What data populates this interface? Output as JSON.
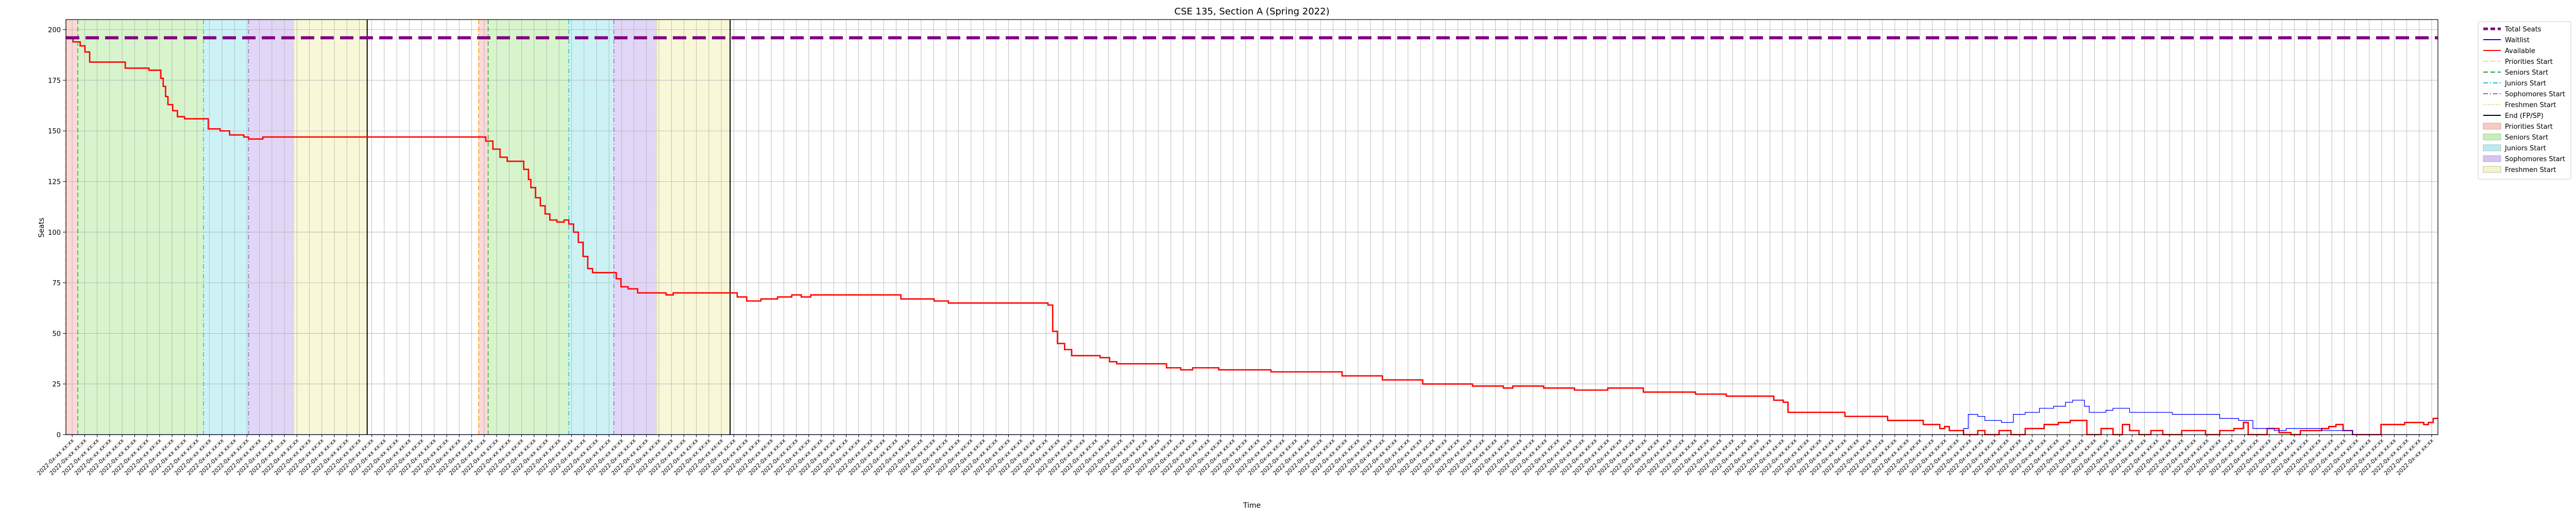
{
  "chart_data": {
    "type": "line",
    "title": "CSE 135, Section A (Spring 2022)",
    "xlabel": "Time",
    "ylabel": "Seats",
    "ylim": [
      0,
      205
    ],
    "y_ticks": [
      0,
      25,
      50,
      75,
      100,
      125,
      150,
      175,
      200
    ],
    "x_range": [
      0,
      100
    ],
    "grid": true,
    "legend_placement": "outside-right",
    "x_tick_label_pattern": "2022-0x-xx xx:xx",
    "total_seats": 196,
    "legend": [
      {
        "label": "Total Seats",
        "kind": "line",
        "color": "#800080",
        "dash": "dashed",
        "thick": true
      },
      {
        "label": "Waitlist",
        "kind": "line",
        "color": "#0000ff",
        "dash": "solid"
      },
      {
        "label": "Available",
        "kind": "line",
        "color": "#ff0000",
        "dash": "solid"
      },
      {
        "label": "Priorities Start",
        "kind": "line",
        "color": "#ffd27f",
        "dash": "dashed"
      },
      {
        "label": "Seniors Start",
        "kind": "line",
        "color": "#2ca02c",
        "dash": "dashed"
      },
      {
        "label": "Juniors Start",
        "kind": "line",
        "color": "#17becf",
        "dash": "dashdot"
      },
      {
        "label": "Sophomores Start",
        "kind": "line",
        "color": "#9467bd",
        "dash": "dashdot"
      },
      {
        "label": "Freshmen Start",
        "kind": "line",
        "color": "#d4d46a",
        "dash": "dotted"
      },
      {
        "label": "End (FP/SP)",
        "kind": "line",
        "color": "#000000",
        "dash": "solid"
      },
      {
        "label": "Priorities Start",
        "kind": "patch",
        "color": "#f8c9c4"
      },
      {
        "label": "Seniors Start",
        "kind": "patch",
        "color": "#c6f0b6"
      },
      {
        "label": "Juniors Start",
        "kind": "patch",
        "color": "#b6ecf2"
      },
      {
        "label": "Sophomores Start",
        "kind": "patch",
        "color": "#d5c4f2"
      },
      {
        "label": "Freshmen Start",
        "kind": "patch",
        "color": "#f5f5c8"
      }
    ],
    "phases": [
      {
        "name": "Priorities Start",
        "start": 0.0,
        "end": 0.5,
        "color": "#f8c9c4",
        "line_color": "#ff8c00",
        "line_dash": "dashed"
      },
      {
        "name": "Seniors Start",
        "start": 0.5,
        "end": 5.8,
        "color": "#c6f0b6",
        "line_color": "#2ca02c",
        "line_dash": "dashed"
      },
      {
        "name": "Juniors Start",
        "start": 5.8,
        "end": 7.7,
        "color": "#b6ecf2",
        "line_color": "#17becf",
        "line_dash": "dashdot"
      },
      {
        "name": "Sophomores Start",
        "start": 7.7,
        "end": 9.6,
        "color": "#d5c4f2",
        "line_color": "#9467bd",
        "line_dash": "dashdot"
      },
      {
        "name": "Freshmen Start",
        "start": 9.6,
        "end": 12.7,
        "color": "#f5f5c8",
        "line_color": "#c8c850",
        "line_dash": "dotted"
      },
      {
        "name": "Priorities Start",
        "start": 17.4,
        "end": 17.8,
        "color": "#f8c9c4",
        "line_color": "#ff8c00",
        "line_dash": "dashed"
      },
      {
        "name": "Seniors Start",
        "start": 17.8,
        "end": 21.2,
        "color": "#c6f0b6",
        "line_color": "#2ca02c",
        "line_dash": "dashed"
      },
      {
        "name": "Juniors Start",
        "start": 21.2,
        "end": 23.1,
        "color": "#b6ecf2",
        "line_color": "#17becf",
        "line_dash": "dashdot"
      },
      {
        "name": "Sophomores Start",
        "start": 23.1,
        "end": 24.9,
        "color": "#d5c4f2",
        "line_color": "#9467bd",
        "line_dash": "dashdot"
      },
      {
        "name": "Freshmen Start",
        "start": 24.9,
        "end": 28.0,
        "color": "#f5f5c8",
        "line_color": "#c8c850",
        "line_dash": "dotted"
      }
    ],
    "end_lines": [
      12.7,
      28.0
    ],
    "series": [
      {
        "name": "Available",
        "color": "#ff0000",
        "points": [
          [
            0.0,
            196
          ],
          [
            0.3,
            194
          ],
          [
            0.6,
            192
          ],
          [
            0.8,
            189
          ],
          [
            1.0,
            184
          ],
          [
            2.4,
            184
          ],
          [
            2.5,
            181
          ],
          [
            3.4,
            181
          ],
          [
            3.5,
            180
          ],
          [
            3.9,
            180
          ],
          [
            4.0,
            176
          ],
          [
            4.1,
            172
          ],
          [
            4.2,
            167
          ],
          [
            4.3,
            163
          ],
          [
            4.5,
            160
          ],
          [
            4.7,
            157
          ],
          [
            5.0,
            156
          ],
          [
            5.8,
            156
          ],
          [
            6.0,
            151
          ],
          [
            6.5,
            150
          ],
          [
            6.9,
            148
          ],
          [
            7.5,
            147
          ],
          [
            7.7,
            146
          ],
          [
            8.3,
            147
          ],
          [
            9.6,
            147
          ],
          [
            17.4,
            147
          ],
          [
            17.7,
            145
          ],
          [
            18.0,
            141
          ],
          [
            18.3,
            137
          ],
          [
            18.6,
            135
          ],
          [
            19.1,
            135
          ],
          [
            19.3,
            131
          ],
          [
            19.5,
            126
          ],
          [
            19.6,
            122
          ],
          [
            19.8,
            117
          ],
          [
            20.0,
            113
          ],
          [
            20.2,
            109
          ],
          [
            20.4,
            106
          ],
          [
            20.7,
            105
          ],
          [
            21.0,
            106
          ],
          [
            21.2,
            104
          ],
          [
            21.4,
            100
          ],
          [
            21.6,
            95
          ],
          [
            21.8,
            88
          ],
          [
            22.0,
            82
          ],
          [
            22.2,
            80
          ],
          [
            23.0,
            80
          ],
          [
            23.2,
            77
          ],
          [
            23.4,
            73
          ],
          [
            23.7,
            72
          ],
          [
            24.1,
            70
          ],
          [
            25.3,
            69
          ],
          [
            25.6,
            70
          ],
          [
            28.0,
            70
          ],
          [
            28.3,
            68
          ],
          [
            28.7,
            66
          ],
          [
            29.3,
            67
          ],
          [
            30.0,
            68
          ],
          [
            30.6,
            69
          ],
          [
            31.0,
            68
          ],
          [
            31.4,
            69
          ],
          [
            35.0,
            69
          ],
          [
            35.2,
            67
          ],
          [
            36.6,
            66
          ],
          [
            37.2,
            65
          ],
          [
            41.0,
            65
          ],
          [
            41.4,
            64
          ],
          [
            41.6,
            51
          ],
          [
            41.8,
            45
          ],
          [
            42.1,
            42
          ],
          [
            42.4,
            39
          ],
          [
            43.6,
            38
          ],
          [
            44.0,
            36
          ],
          [
            44.3,
            35
          ],
          [
            46.2,
            35
          ],
          [
            46.4,
            33
          ],
          [
            47.0,
            32
          ],
          [
            47.5,
            33
          ],
          [
            48.6,
            32
          ],
          [
            50.6,
            32
          ],
          [
            50.8,
            31
          ],
          [
            53.6,
            31
          ],
          [
            53.8,
            29
          ],
          [
            55.3,
            29
          ],
          [
            55.5,
            27
          ],
          [
            57.0,
            27
          ],
          [
            57.2,
            25
          ],
          [
            59.0,
            25
          ],
          [
            59.3,
            24
          ],
          [
            60.4,
            24
          ],
          [
            60.6,
            23
          ],
          [
            61.0,
            24
          ],
          [
            62.0,
            24
          ],
          [
            62.3,
            23
          ],
          [
            63.4,
            23
          ],
          [
            63.6,
            22
          ],
          [
            64.8,
            22
          ],
          [
            65.0,
            23
          ],
          [
            66.2,
            23
          ],
          [
            66.5,
            21
          ],
          [
            68.4,
            21
          ],
          [
            68.7,
            20
          ],
          [
            69.6,
            20
          ],
          [
            70.0,
            19
          ],
          [
            71.8,
            19
          ],
          [
            72.0,
            17
          ],
          [
            72.4,
            16
          ],
          [
            72.6,
            11
          ],
          [
            74.8,
            11
          ],
          [
            75.0,
            9
          ],
          [
            76.6,
            9
          ],
          [
            76.8,
            7
          ],
          [
            78.0,
            7
          ],
          [
            78.3,
            5
          ],
          [
            78.8,
            5
          ],
          [
            79.0,
            3
          ],
          [
            79.2,
            4
          ],
          [
            79.4,
            2
          ],
          [
            80.0,
            0
          ],
          [
            80.6,
            2
          ],
          [
            80.9,
            0
          ],
          [
            81.3,
            0
          ],
          [
            81.5,
            2
          ],
          [
            81.8,
            2
          ],
          [
            82.0,
            0
          ],
          [
            82.6,
            3
          ],
          [
            83.1,
            3
          ],
          [
            83.4,
            5
          ],
          [
            83.8,
            5
          ],
          [
            84.0,
            6
          ],
          [
            84.3,
            6
          ],
          [
            84.5,
            7
          ],
          [
            85.0,
            7
          ],
          [
            85.2,
            0
          ],
          [
            85.8,
            3
          ],
          [
            86.3,
            0
          ],
          [
            86.7,
            5
          ],
          [
            87.0,
            2
          ],
          [
            87.4,
            0
          ],
          [
            87.9,
            2
          ],
          [
            88.4,
            0
          ],
          [
            88.8,
            0
          ],
          [
            89.2,
            2
          ],
          [
            89.8,
            2
          ],
          [
            90.2,
            0
          ],
          [
            90.8,
            2
          ],
          [
            91.4,
            3
          ],
          [
            91.8,
            6
          ],
          [
            92.0,
            0
          ],
          [
            92.4,
            0
          ],
          [
            92.8,
            3
          ],
          [
            93.3,
            1
          ],
          [
            93.8,
            0
          ],
          [
            94.2,
            2
          ],
          [
            94.7,
            2
          ],
          [
            95.1,
            3
          ],
          [
            95.4,
            4
          ],
          [
            95.7,
            5
          ],
          [
            96.0,
            2
          ],
          [
            96.4,
            0
          ],
          [
            97.2,
            0
          ],
          [
            97.6,
            5
          ],
          [
            98.2,
            5
          ],
          [
            98.6,
            6
          ],
          [
            99.1,
            6
          ],
          [
            99.4,
            5
          ],
          [
            99.6,
            6
          ],
          [
            99.8,
            8
          ],
          [
            100.0,
            8
          ]
        ]
      },
      {
        "name": "Waitlist",
        "color": "#0000ff",
        "points": [
          [
            0.0,
            0
          ],
          [
            79.8,
            0
          ],
          [
            80.0,
            3
          ],
          [
            80.2,
            10
          ],
          [
            80.6,
            9
          ],
          [
            80.9,
            7
          ],
          [
            81.6,
            6
          ],
          [
            82.1,
            10
          ],
          [
            82.6,
            11
          ],
          [
            83.2,
            13
          ],
          [
            83.8,
            14
          ],
          [
            84.3,
            16
          ],
          [
            84.6,
            17
          ],
          [
            85.1,
            14
          ],
          [
            85.3,
            11
          ],
          [
            86.0,
            12
          ],
          [
            86.3,
            13
          ],
          [
            86.7,
            13
          ],
          [
            87.0,
            11
          ],
          [
            88.6,
            11
          ],
          [
            88.8,
            10
          ],
          [
            90.6,
            10
          ],
          [
            90.8,
            8
          ],
          [
            91.6,
            7
          ],
          [
            92.2,
            3
          ],
          [
            93.1,
            2
          ],
          [
            93.6,
            3
          ],
          [
            94.8,
            3
          ],
          [
            95.1,
            2
          ],
          [
            96.2,
            2
          ],
          [
            96.4,
            0
          ],
          [
            100.0,
            0
          ]
        ]
      },
      {
        "name": "Total Seats",
        "color": "#800080",
        "points": [
          [
            0.0,
            196
          ],
          [
            100.0,
            196
          ]
        ]
      }
    ]
  }
}
